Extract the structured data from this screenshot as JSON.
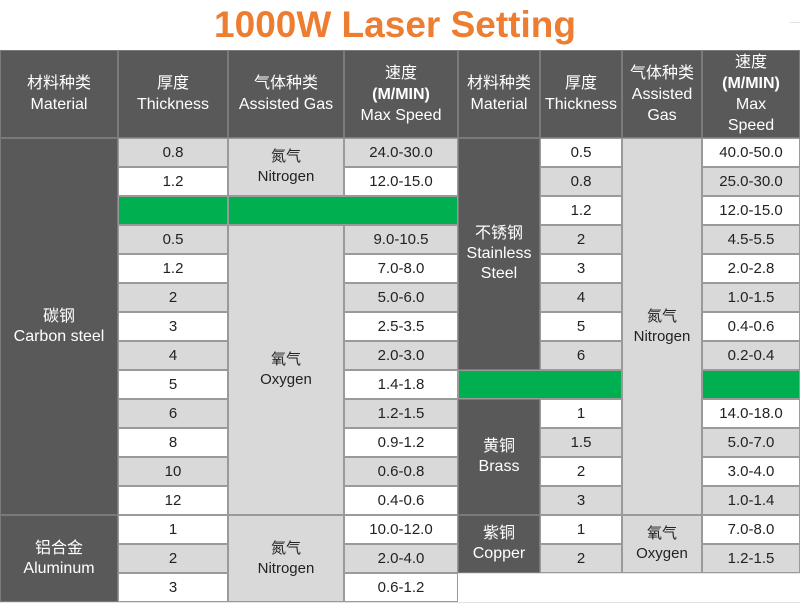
{
  "title": "1000W Laser Setting",
  "left_table": {
    "header": [
      [
        "材料种类",
        "Material"
      ],
      [
        "厚度",
        "Thickness"
      ],
      [
        "气体种类",
        "Assisted Gas"
      ],
      [
        "速度",
        "(M/MIN)",
        "Max Speed"
      ]
    ],
    "materials": [
      [
        "碳钢",
        "Carbon steel"
      ],
      [
        "铝合金",
        "Aluminum"
      ]
    ],
    "gases": [
      [
        "氮气",
        "Nitrogen"
      ],
      [
        "氧气",
        "Oxygen"
      ],
      [
        "氮气",
        "Nitrogen"
      ]
    ],
    "rows": [
      [
        "0.8",
        "24.0-30.0"
      ],
      [
        "1.2",
        "12.0-15.0"
      ],
      [
        "0.5",
        "9.0-10.5"
      ],
      [
        "1.2",
        "7.0-8.0"
      ],
      [
        "2",
        "5.0-6.0"
      ],
      [
        "3",
        "2.5-3.5"
      ],
      [
        "4",
        "2.0-3.0"
      ],
      [
        "5",
        "1.4-1.8"
      ],
      [
        "6",
        "1.2-1.5"
      ],
      [
        "8",
        "0.9-1.2"
      ],
      [
        "10",
        "0.6-0.8"
      ],
      [
        "12",
        "0.4-0.6"
      ],
      [
        "1",
        "10.0-12.0"
      ],
      [
        "2",
        "2.0-4.0"
      ],
      [
        "3",
        "0.6-1.2"
      ]
    ]
  },
  "right_table": {
    "header": [
      [
        "材料种类",
        "Material"
      ],
      [
        "厚度",
        "Thickness"
      ],
      [
        "气体种类",
        "Assisted",
        "Gas"
      ],
      [
        "速度",
        "(M/MIN)",
        "Max",
        "Speed"
      ]
    ],
    "materials": [
      [
        "不锈钢",
        "Stainless",
        "Steel"
      ],
      [
        "黄铜",
        "Brass"
      ],
      [
        "紫铜",
        "Copper"
      ]
    ],
    "gases": [
      [
        "氮气",
        "Nitrogen"
      ],
      [
        "氧气",
        "Oxygen"
      ]
    ],
    "rows": [
      [
        "0.5",
        "40.0-50.0"
      ],
      [
        "0.8",
        "25.0-30.0"
      ],
      [
        "1.2",
        "12.0-15.0"
      ],
      [
        "2",
        "4.5-5.5"
      ],
      [
        "3",
        "2.0-2.8"
      ],
      [
        "4",
        "1.0-1.5"
      ],
      [
        "5",
        "0.4-0.6"
      ],
      [
        "6",
        "0.2-0.4"
      ],
      [
        "1",
        "14.0-18.0"
      ],
      [
        "1.5",
        "5.0-7.0"
      ],
      [
        "2",
        "3.0-4.0"
      ],
      [
        "3",
        "1.0-1.4"
      ],
      [
        "1",
        "7.0-8.0"
      ],
      [
        "2",
        "1.2-1.5"
      ]
    ]
  }
}
